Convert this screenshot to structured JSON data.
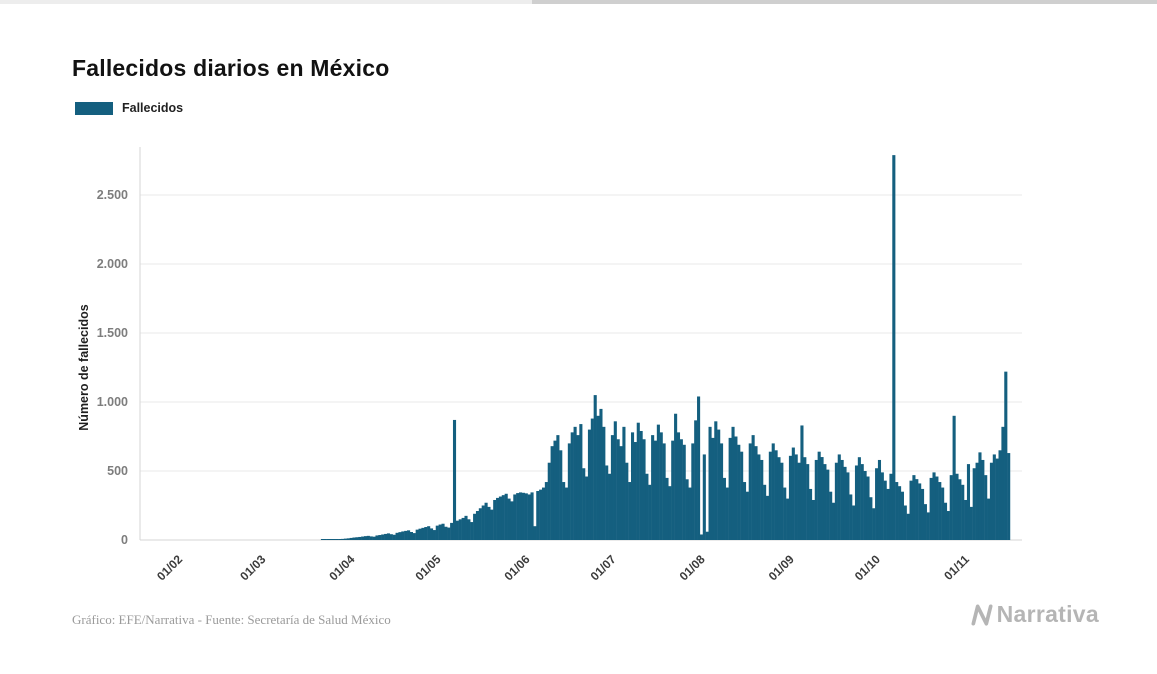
{
  "title": "Fallecidos diarios en México",
  "legend": {
    "label": "Fallecidos",
    "color": "#145f7f"
  },
  "footer": {
    "credit": "Gráfico: EFE/Narrativa - Fuente: Secretaría de Salud México",
    "brand": "Narrativa"
  },
  "chart_data": {
    "type": "bar",
    "title": "Fallecidos diarios en México",
    "xlabel": "",
    "ylabel": "Número de fallecidos",
    "series_name": "Fallecidos",
    "bar_color": "#145f7f",
    "grid": true,
    "legend_position": "top-left",
    "ylim": [
      0,
      2789
    ],
    "y_ticks": [
      {
        "value": 0,
        "label": "0"
      },
      {
        "value": 500,
        "label": "500"
      },
      {
        "value": 1000,
        "label": "1.000"
      },
      {
        "value": 1500,
        "label": "1.500"
      },
      {
        "value": 2000,
        "label": "2.000"
      },
      {
        "value": 2500,
        "label": "2.500"
      }
    ],
    "months": [
      {
        "tick": null,
        "values": [
          0,
          0,
          0,
          0,
          0,
          0,
          0,
          0,
          0,
          0,
          0,
          0,
          0,
          0,
          0
        ]
      },
      {
        "tick": "01/02",
        "values": [
          0,
          0,
          0,
          0,
          0,
          0,
          0,
          0,
          0,
          0,
          0,
          0,
          0,
          0,
          0,
          0,
          0,
          0,
          0,
          0,
          0,
          0,
          0,
          0,
          0,
          0,
          0,
          0,
          0
        ]
      },
      {
        "tick": "01/03",
        "values": [
          0,
          0,
          0,
          0,
          0,
          0,
          0,
          0,
          0,
          0,
          0,
          0,
          0,
          0,
          0,
          0,
          0,
          0,
          0,
          1,
          2,
          2,
          3,
          4,
          5,
          6,
          8,
          10,
          12,
          15,
          18
        ]
      },
      {
        "tick": "01/04",
        "values": [
          20,
          22,
          25,
          28,
          30,
          26,
          24,
          33,
          36,
          40,
          44,
          48,
          42,
          38,
          52,
          57,
          62,
          66,
          70,
          58,
          50,
          75,
          82,
          88,
          94,
          100,
          84,
          72,
          104,
          112
        ]
      },
      {
        "tick": "01/05",
        "values": [
          118,
          96,
          90,
          124,
          870,
          140,
          150,
          160,
          175,
          150,
          130,
          190,
          210,
          230,
          250,
          270,
          240,
          220,
          290,
          305,
          315,
          325,
          335,
          300,
          280,
          330,
          340,
          345,
          342,
          338,
          330
        ]
      },
      {
        "tick": "01/06",
        "values": [
          345,
          100,
          355,
          365,
          380,
          420,
          560,
          680,
          720,
          760,
          650,
          420,
          380,
          700,
          780,
          820,
          760,
          840,
          520,
          460,
          800,
          880,
          1050,
          900,
          950,
          820,
          540,
          480,
          760,
          860
        ]
      },
      {
        "tick": "01/07",
        "values": [
          730,
          680,
          820,
          560,
          420,
          780,
          710,
          850,
          790,
          730,
          480,
          400,
          760,
          720,
          836,
          780,
          700,
          450,
          390,
          720,
          915,
          780,
          730,
          690,
          440,
          380,
          700,
          867,
          1040,
          40,
          620
        ]
      },
      {
        "tick": "01/08",
        "values": [
          60,
          820,
          740,
          860,
          800,
          700,
          450,
          380,
          740,
          820,
          750,
          690,
          640,
          420,
          350,
          700,
          760,
          680,
          620,
          580,
          400,
          320,
          640,
          700,
          650,
          600,
          560,
          380,
          300,
          610,
          670
        ]
      },
      {
        "tick": "01/09",
        "values": [
          620,
          560,
          830,
          600,
          550,
          370,
          290,
          580,
          640,
          601,
          550,
          510,
          350,
          270,
          560,
          620,
          580,
          530,
          490,
          330,
          250,
          540,
          600,
          550,
          500,
          460,
          310,
          230,
          520,
          580
        ]
      },
      {
        "tick": "01/10",
        "values": [
          490,
          430,
          370,
          480,
          2789,
          420,
          390,
          350,
          250,
          190,
          430,
          470,
          441,
          410,
          370,
          260,
          200,
          450,
          490,
          460,
          420,
          380,
          270,
          210,
          470,
          900,
          480,
          440,
          400,
          290,
          550
        ]
      },
      {
        "tick": "01/11",
        "values": [
          240,
          520,
          560,
          635,
          580,
          470,
          300,
          560,
          620,
          590,
          650,
          820,
          1220,
          630
        ]
      }
    ]
  }
}
